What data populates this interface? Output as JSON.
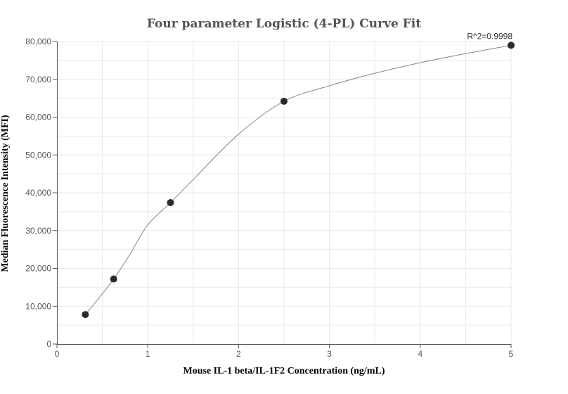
{
  "chart_data": {
    "type": "scatter",
    "title": "Four parameter Logistic (4-PL) Curve Fit",
    "xlabel": "Mouse IL-1 beta/IL-1F2 Concentration (ng/mL)",
    "ylabel": "Median Fluorescence Intensity (MFI)",
    "xlim": [
      0,
      5
    ],
    "ylim": [
      0,
      80000
    ],
    "x_ticks": [
      {
        "value": 0,
        "label": "0"
      },
      {
        "value": 1,
        "label": "1"
      },
      {
        "value": 2,
        "label": "2"
      },
      {
        "value": 3,
        "label": "3"
      },
      {
        "value": 4,
        "label": "4"
      },
      {
        "value": 5,
        "label": "5"
      }
    ],
    "y_ticks": [
      {
        "value": 0,
        "label": "0"
      },
      {
        "value": 10000,
        "label": "10,000"
      },
      {
        "value": 20000,
        "label": "20,000"
      },
      {
        "value": 30000,
        "label": "30,000"
      },
      {
        "value": 40000,
        "label": "40,000"
      },
      {
        "value": 50000,
        "label": "50,000"
      },
      {
        "value": 60000,
        "label": "60,000"
      },
      {
        "value": 70000,
        "label": "70,000"
      },
      {
        "value": 80000,
        "label": "80,000"
      }
    ],
    "grid": true,
    "series": [
      {
        "x": [
          0.3125,
          0.625,
          1.25,
          2.5,
          5
        ],
        "y": [
          7800,
          17200,
          37400,
          64200,
          79000
        ]
      }
    ],
    "fit_curve": {
      "x": [
        0.3125,
        0.47,
        0.625,
        0.8,
        1.0,
        1.25,
        1.5,
        2.0,
        2.5,
        3.0,
        3.5,
        4.0,
        4.5,
        5.0
      ],
      "y": [
        7800,
        12400,
        17200,
        23600,
        31500,
        37400,
        43500,
        55500,
        64200,
        68300,
        71600,
        74400,
        76800,
        79000
      ]
    },
    "annotations": [
      {
        "text": "R^2=0.9998",
        "x": 5,
        "y": 79000
      }
    ],
    "colors": {
      "marker": "#2b2b2b",
      "curve": "#888888",
      "grid": "#e8e8ee",
      "axis": "#555555"
    }
  }
}
